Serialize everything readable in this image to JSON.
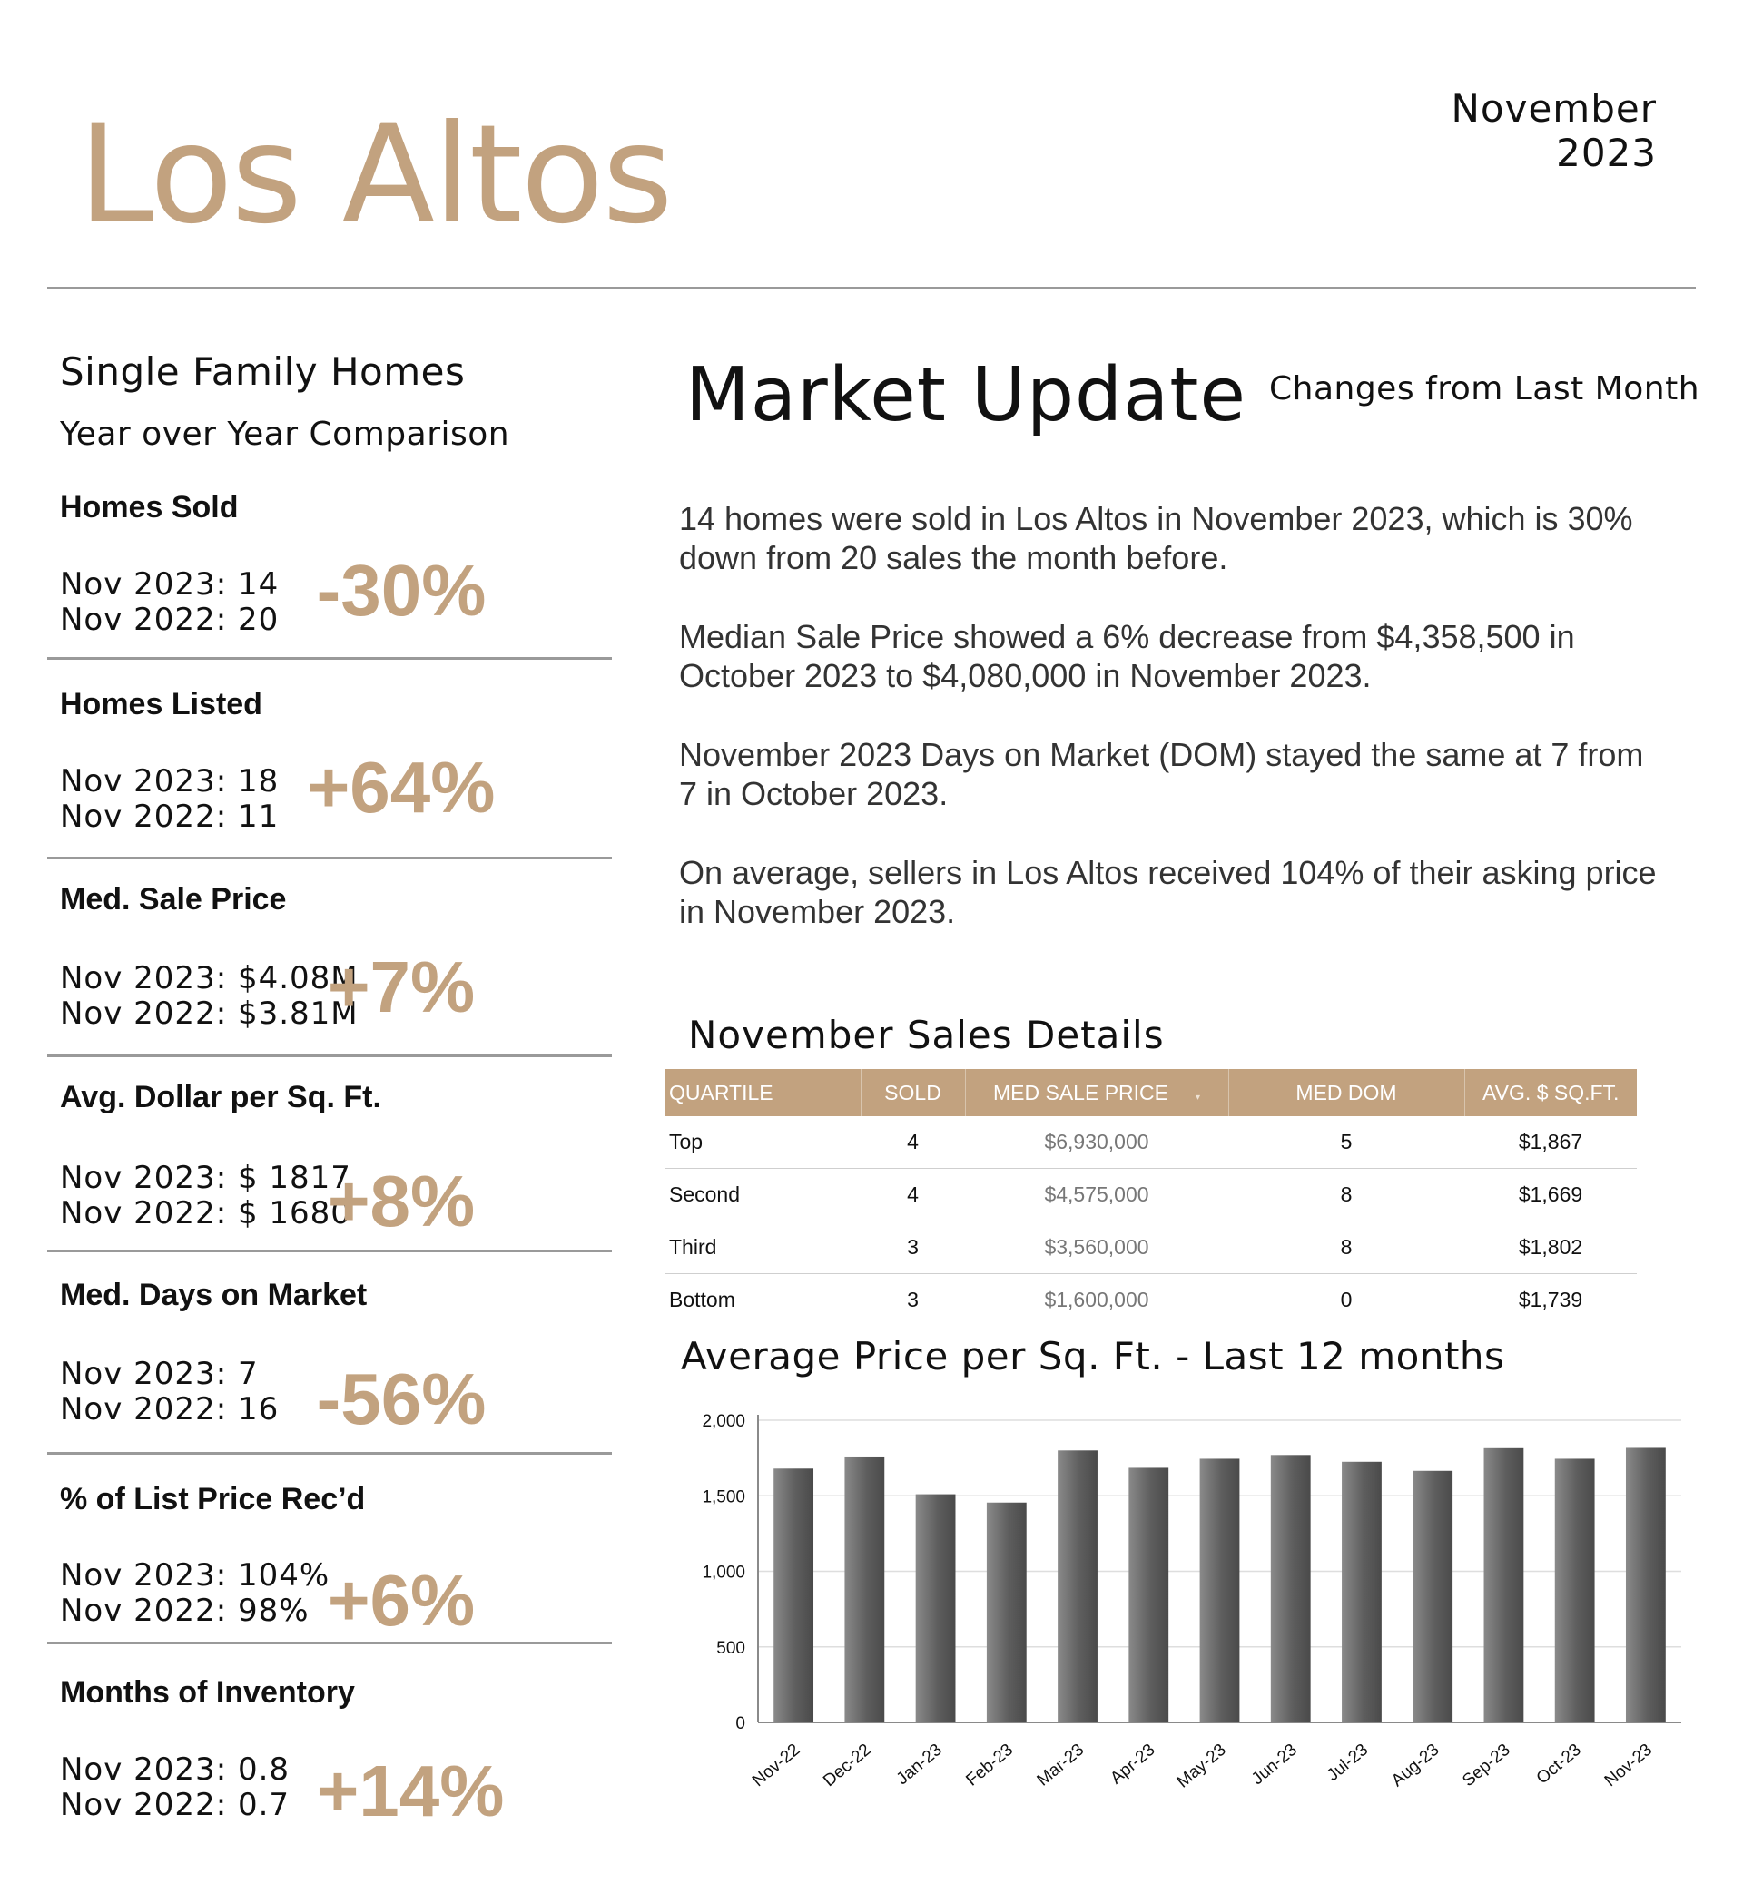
{
  "header": {
    "city": "Los Altos",
    "date": "November 2023"
  },
  "left": {
    "heading": "Single Family Homes",
    "subheading": "Year over Year Comparison",
    "metrics": [
      {
        "label": "Homes Sold",
        "current": "Nov 2023:  14",
        "previous": "Nov 2022:  20",
        "change": "-30%"
      },
      {
        "label": "Homes Listed",
        "current": "Nov 2023:  18",
        "previous": "Nov 2022:  11",
        "change": "+64%"
      },
      {
        "label": "Med. Sale Price",
        "current": "Nov 2023:   $4.08M",
        "previous": "Nov 2022:   $3.81M",
        "change": "+7%"
      },
      {
        "label": "Avg. Dollar per Sq. Ft.",
        "current": "Nov 2023:  $ 1817",
        "previous": "Nov 2022:  $ 1680",
        "change": "+8%"
      },
      {
        "label": "Med. Days on Market",
        "current": "Nov 2023:   7",
        "previous": "Nov 2022:   16",
        "change": "-56%"
      },
      {
        "label": "% of List Price Rec’d",
        "current": "Nov 2023:   104%",
        "previous": "Nov 2022:   98%",
        "change": "+6%"
      },
      {
        "label": "Months of Inventory",
        "current": "Nov 2023:   0.8",
        "previous": "Nov 2022:   0.7",
        "change": "+14%"
      }
    ]
  },
  "market_update": {
    "title": "Market Update",
    "subtitle": "Changes from Last Month",
    "paragraphs": [
      "14 homes were sold in Los Altos in November 2023, which is 30% down from 20 sales the month before.",
      "Median Sale Price showed a 6% decrease from $4,358,500 in October 2023 to $4,080,000 in November 2023.",
      "November 2023 Days on Market (DOM) stayed the same at 7 from 7 in October 2023.",
      "On average, sellers in Los Altos received 104% of their asking price in November 2023."
    ]
  },
  "sales_details": {
    "title": "November Sales Details",
    "columns": [
      "QUARTILE",
      "SOLD",
      "MED SALE PRICE",
      "MED DOM",
      "AVG. $ SQ.FT."
    ],
    "sort_caret": "▾",
    "rows": [
      [
        "Top",
        "4",
        "$6,930,000",
        "5",
        "$1,867"
      ],
      [
        "Second",
        "4",
        "$4,575,000",
        "8",
        "$1,669"
      ],
      [
        "Third",
        "3",
        "$3,560,000",
        "8",
        "$1,802"
      ],
      [
        "Bottom",
        "3",
        "$1,600,000",
        "0",
        "$1,739"
      ]
    ]
  },
  "chart_data": {
    "type": "bar",
    "title": "Average Price per Sq. Ft. - Last 12 months",
    "categories": [
      "Nov-22",
      "Dec-22",
      "Jan-23",
      "Feb-23",
      "Mar-23",
      "Apr-23",
      "May-23",
      "Jun-23",
      "Jul-23",
      "Aug-23",
      "Sep-23",
      "Oct-23",
      "Nov-23"
    ],
    "values": [
      1680,
      1760,
      1510,
      1455,
      1800,
      1685,
      1745,
      1770,
      1725,
      1665,
      1815,
      1745,
      1817
    ],
    "yticks": [
      0,
      500,
      1000,
      1500,
      2000
    ],
    "ytick_labels": [
      "0",
      "500",
      "1,000",
      "1,500",
      "2,000"
    ],
    "ylim": [
      0,
      2000
    ],
    "grid": true,
    "bar_color": "#666666"
  }
}
